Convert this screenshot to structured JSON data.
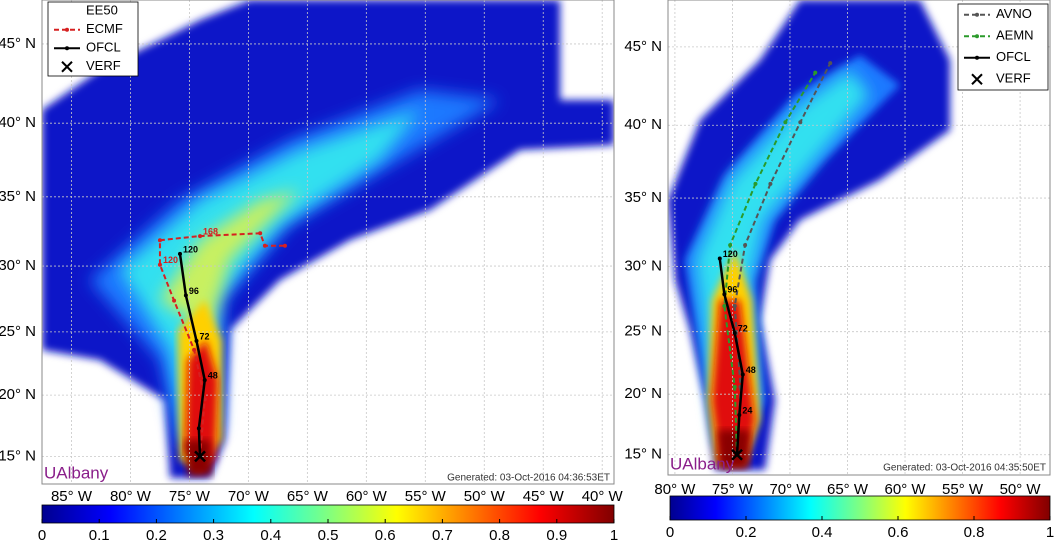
{
  "panels": [
    {
      "xlim": [
        -87.5,
        -39
      ],
      "ylim": [
        12.7,
        47.6
      ],
      "xticks": [
        {
          "value": -85,
          "label": "85° W"
        },
        {
          "value": -80,
          "label": "80° W"
        },
        {
          "value": -75,
          "label": "75° W"
        },
        {
          "value": -70,
          "label": "70° W"
        },
        {
          "value": -65,
          "label": "65° W"
        },
        {
          "value": -60,
          "label": "60° W"
        },
        {
          "value": -55,
          "label": "55° W"
        },
        {
          "value": -50,
          "label": "50° W"
        },
        {
          "value": -45,
          "label": "45° W"
        },
        {
          "value": -40,
          "label": "40° W"
        }
      ],
      "yticks": [
        {
          "value": 15,
          "label": "15° N"
        },
        {
          "value": 20,
          "label": "20° N"
        },
        {
          "value": 25,
          "label": "25° N"
        },
        {
          "value": 30,
          "label": "30° N"
        },
        {
          "value": 35,
          "label": "35° N"
        },
        {
          "value": 40,
          "label": "40° N"
        },
        {
          "value": 45,
          "label": "45° N"
        }
      ],
      "colorbar": {
        "lim": [
          0,
          1
        ],
        "ticks": [
          0,
          0.1,
          0.2,
          0.3,
          0.4,
          0.5,
          0.6,
          0.7,
          0.8,
          0.9,
          1
        ]
      },
      "legend": [
        {
          "label": "EE50",
          "style": "none",
          "color": "#000000"
        },
        {
          "label": "ECMF",
          "style": "dash",
          "color": "#d62020"
        },
        {
          "label": "OFCL",
          "style": "solid",
          "color": "#000000"
        },
        {
          "label": "VERF",
          "style": "x",
          "color": "#000000"
        }
      ],
      "tracks": [
        {
          "name": "ECMF",
          "color": "#d62020",
          "dash": true,
          "lon": [
            -74.1,
            -73.7,
            -74.6,
            -76.3,
            -77.5,
            -77.5,
            -74.1,
            -69.0,
            -68.6,
            -66.9
          ],
          "lat": [
            15,
            19.65,
            23.6,
            27.4,
            30.1,
            31.9,
            32.2,
            32.4,
            31.5,
            31.5
          ],
          "labels": [
            null,
            null,
            null,
            null,
            120,
            null,
            168,
            null,
            null,
            null
          ]
        },
        {
          "name": "OFCL",
          "color": "#000000",
          "dash": false,
          "lon": [
            -74.1,
            -74.2,
            -73.7,
            -74.4,
            -75.3,
            -75.8
          ],
          "lat": [
            15,
            17.3,
            21.2,
            24.3,
            27.8,
            30.9
          ],
          "labels": [
            null,
            null,
            48,
            72,
            96,
            120
          ]
        }
      ],
      "verf": {
        "lon": -74.1,
        "lat": 15
      },
      "generated": "Generated: 03-Oct-2016 04:36:53ET",
      "watermark": "UAlbany"
    },
    {
      "xlim": [
        -80.6,
        -47.4
      ],
      "ylim": [
        13.3,
        47.8
      ],
      "xticks": [
        {
          "value": -80,
          "label": "80° W"
        },
        {
          "value": -75,
          "label": "75° W"
        },
        {
          "value": -70,
          "label": "70° W"
        },
        {
          "value": -65,
          "label": "65° W"
        },
        {
          "value": -60,
          "label": "60° W"
        },
        {
          "value": -55,
          "label": "55° W"
        },
        {
          "value": -50,
          "label": "50° W"
        }
      ],
      "yticks": [
        {
          "value": 15,
          "label": "15° N"
        },
        {
          "value": 20,
          "label": "20° N"
        },
        {
          "value": 25,
          "label": "25° N"
        },
        {
          "value": 30,
          "label": "30° N"
        },
        {
          "value": 35,
          "label": "35° N"
        },
        {
          "value": 40,
          "label": "40° N"
        },
        {
          "value": 45,
          "label": "45° N"
        }
      ],
      "colorbar": {
        "lim": [
          0,
          1
        ],
        "ticks": [
          0,
          0.2,
          0.4,
          0.6,
          0.8,
          1
        ]
      },
      "legend": [
        {
          "label": "AVNO",
          "style": "dash",
          "color": "#555555"
        },
        {
          "label": "AEMN",
          "style": "dash",
          "color": "#2a9a2a"
        },
        {
          "label": "OFCL",
          "style": "solid",
          "color": "#000000"
        },
        {
          "label": "VERF",
          "style": "x",
          "color": "#000000"
        }
      ],
      "tracks": [
        {
          "name": "AVNO",
          "color": "#555555",
          "dash": true,
          "lon": [
            -74.6,
            -74.3,
            -74.8,
            -73.9,
            -71.7,
            -69.1,
            -66.5
          ],
          "lat": [
            15,
            20.6,
            27.0,
            31.6,
            36.0,
            40.2,
            44.0
          ]
        },
        {
          "name": "AEMN",
          "color": "#2a9a2a",
          "dash": true,
          "lon": [
            -74.6,
            -74.8,
            -75.7,
            -75.2,
            -73.0,
            -70.4,
            -67.8
          ],
          "lat": [
            15,
            20.6,
            27.0,
            31.6,
            36.0,
            40.2,
            43.4
          ]
        },
        {
          "name": "OFCL",
          "color": "#000000",
          "dash": false,
          "lon": [
            -74.6,
            -74.4,
            -74.1,
            -74.8,
            -75.7,
            -76.1
          ],
          "lat": [
            15,
            18.3,
            21.6,
            24.9,
            27.9,
            30.6
          ],
          "labels": [
            null,
            24,
            48,
            72,
            96,
            120
          ]
        }
      ],
      "verf": {
        "lon": -74.6,
        "lat": 15
      },
      "generated": "Generated: 03-Oct-2016 04:35:50ET",
      "watermark": "UAlbany"
    }
  ]
}
